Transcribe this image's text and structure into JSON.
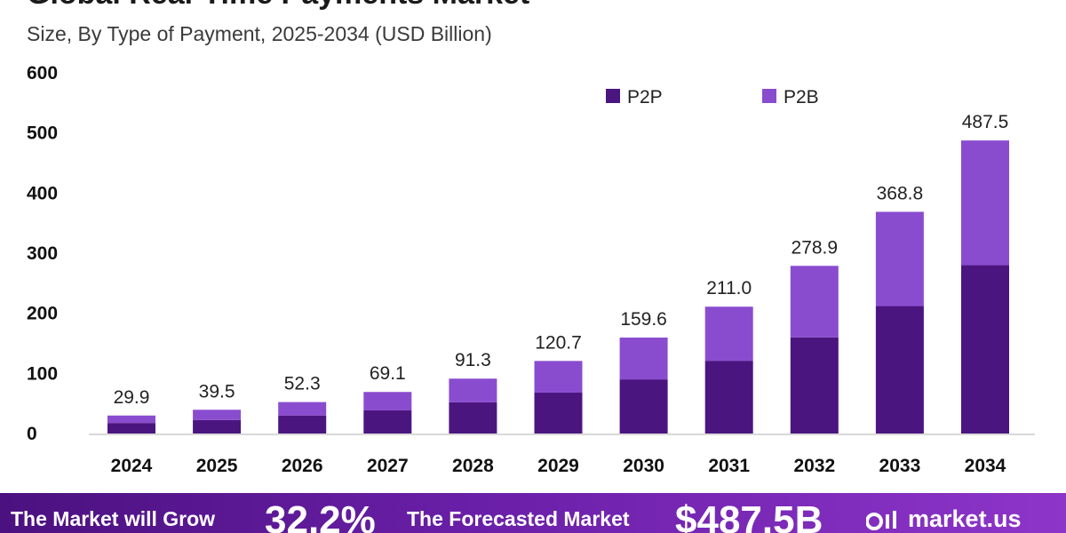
{
  "header": {
    "title": "Global Real-Time Payments Market",
    "subtitle": "Size, By Type of Payment, 2025-2034 (USD Billion)"
  },
  "chart_data": {
    "type": "bar",
    "stacked": true,
    "categories": [
      "2024",
      "2025",
      "2026",
      "2027",
      "2028",
      "2029",
      "2030",
      "2031",
      "2032",
      "2033",
      "2034"
    ],
    "series": [
      {
        "name": "P2P",
        "color": "#4b1580",
        "values": [
          17.5,
          22.5,
          30.0,
          38.5,
          52.0,
          68.0,
          90.0,
          121.0,
          160.0,
          212.0,
          280.0
        ]
      },
      {
        "name": "P2B",
        "color": "#8a4ccf",
        "values": [
          12.4,
          17.0,
          22.3,
          30.6,
          39.3,
          52.7,
          69.6,
          90.0,
          118.9,
          156.8,
          207.5
        ]
      }
    ],
    "totals": [
      "29.9",
      "39.5",
      "52.3",
      "69.1",
      "91.3",
      "120.7",
      "159.6",
      "211.0",
      "278.9",
      "368.8",
      "487.5"
    ],
    "y_ticks": [
      "0",
      "100",
      "200",
      "300",
      "400",
      "500",
      "600"
    ],
    "ylim": [
      0,
      600
    ],
    "legend_position": "top-right",
    "grid": false
  },
  "footer": {
    "grow_label": "The Market will Grow",
    "cagr": "32.2%",
    "forecast_label": "The Forecasted Market",
    "forecast_value": "$487.5B",
    "brand": "market.us",
    "logo_icon": "market-us-logo-icon"
  }
}
